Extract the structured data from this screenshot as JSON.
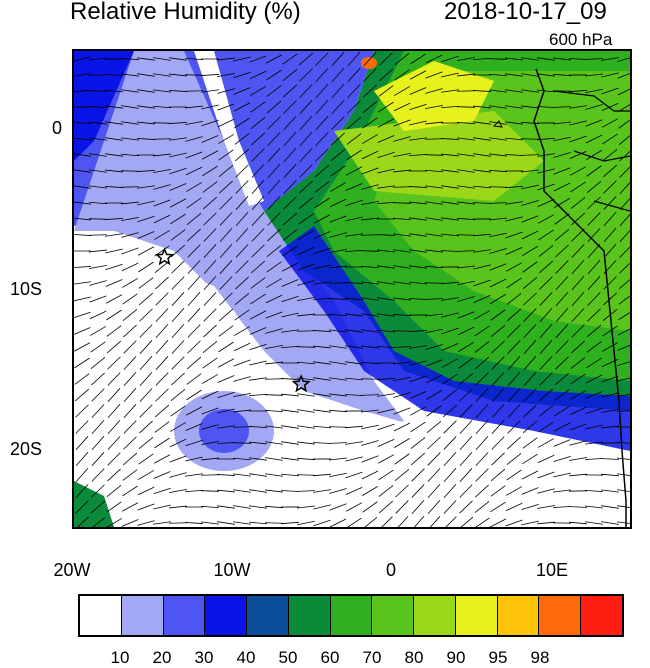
{
  "header": {
    "title": "Relative Humidity (%)",
    "datetime": "2018-10-17_09",
    "level": "600 hPa"
  },
  "axes": {
    "y_ticks": [
      "0",
      "10S",
      "20S"
    ],
    "x_ticks": [
      "20W",
      "10W",
      "0",
      "10E"
    ]
  },
  "colorbar": {
    "colors": [
      "#ffffff",
      "#a3a8f5",
      "#4f55f0",
      "#0b14e6",
      "#0b4f9b",
      "#0b8a3a",
      "#2fb01e",
      "#58c41c",
      "#9bd81a",
      "#e7f21c",
      "#ffc40a",
      "#ff6a0a",
      "#ff1e12"
    ],
    "labels": [
      "10",
      "20",
      "30",
      "40",
      "50",
      "60",
      "70",
      "80",
      "90",
      "95",
      "98"
    ]
  },
  "markers": [
    {
      "name": "star-marker",
      "lon": -14.3,
      "lat": -8.0
    },
    {
      "name": "star-marker",
      "lon": -5.7,
      "lat": -16.0
    }
  ]
}
